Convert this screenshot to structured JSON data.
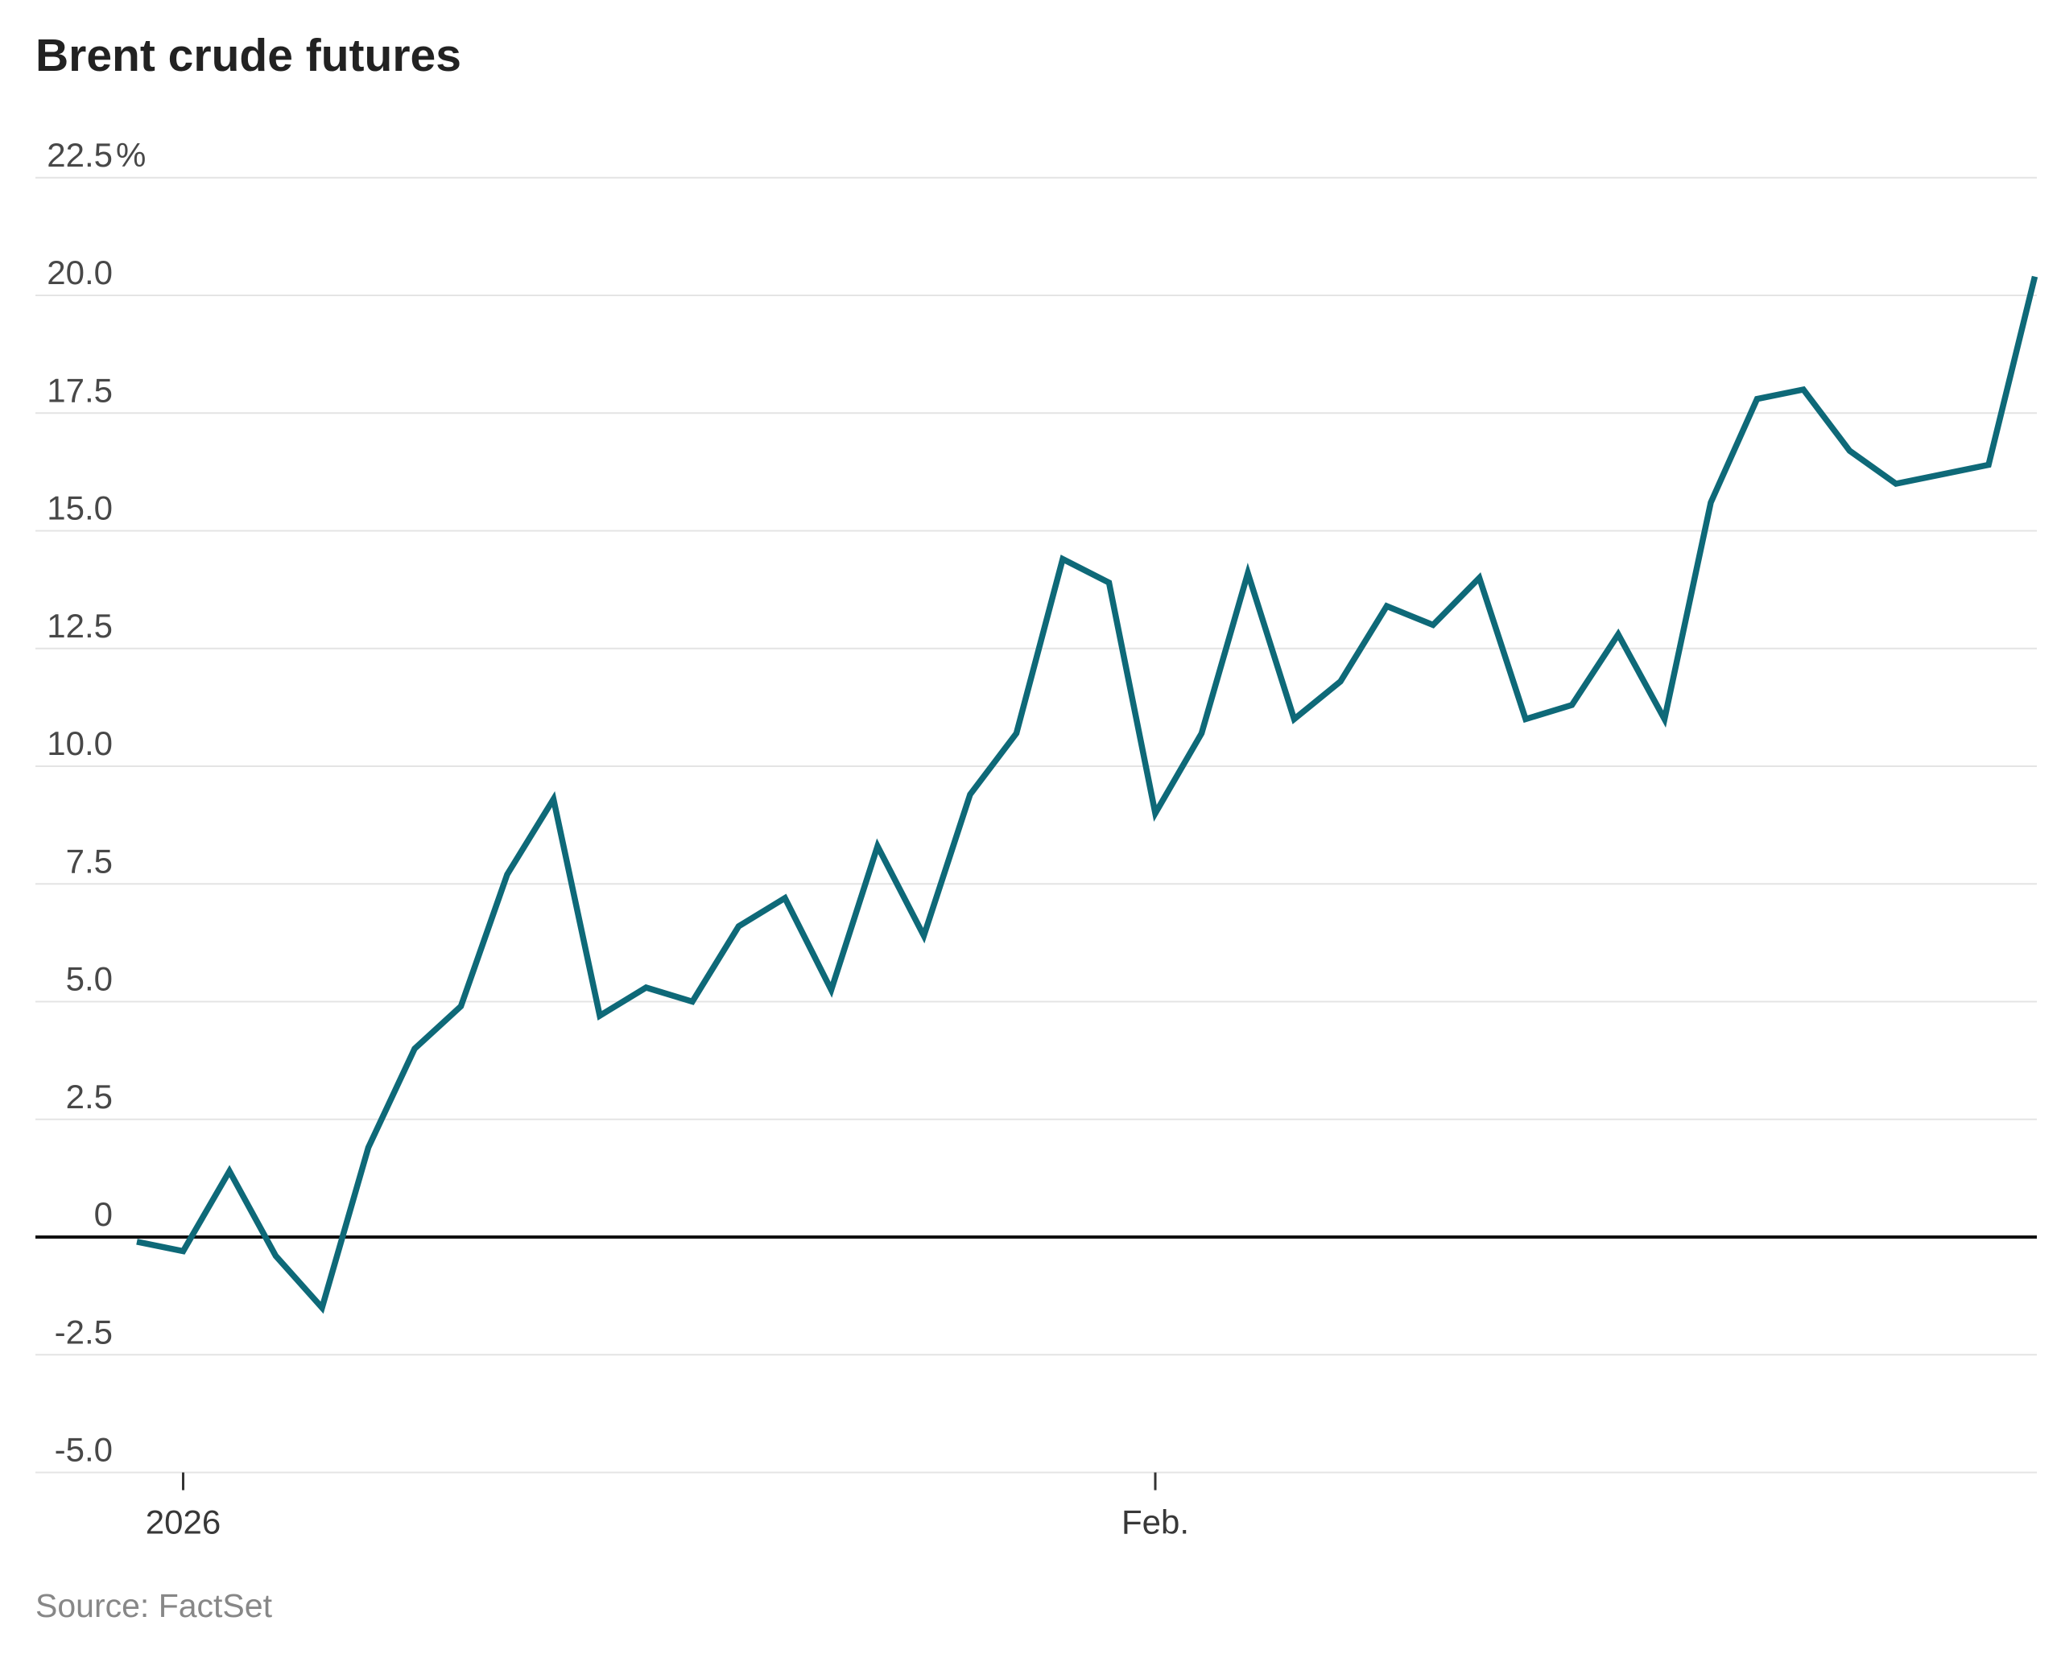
{
  "header": {
    "title": "Brent crude futures"
  },
  "footer": {
    "source": "Source: FactSet"
  },
  "chart_data": {
    "type": "line",
    "title": "Brent crude futures",
    "xlabel": "",
    "ylabel": "",
    "unit": "%",
    "grid": true,
    "legend": "none",
    "ylim": [
      -5.0,
      22.5
    ],
    "y_ticks": [
      {
        "value": 22.5,
        "label": "22.5",
        "suffix": "%"
      },
      {
        "value": 20.0,
        "label": "20.0",
        "suffix": ""
      },
      {
        "value": 17.5,
        "label": "17.5",
        "suffix": ""
      },
      {
        "value": 15.0,
        "label": "15.0",
        "suffix": ""
      },
      {
        "value": 12.5,
        "label": "12.5",
        "suffix": ""
      },
      {
        "value": 10.0,
        "label": "10.0",
        "suffix": ""
      },
      {
        "value": 7.5,
        "label": "7.5",
        "suffix": ""
      },
      {
        "value": 5.0,
        "label": "5.0",
        "suffix": ""
      },
      {
        "value": 2.5,
        "label": "2.5",
        "suffix": ""
      },
      {
        "value": 0,
        "label": "0",
        "suffix": ""
      },
      {
        "value": -2.5,
        "label": "-2.5",
        "suffix": ""
      },
      {
        "value": -5.0,
        "label": "-5.0",
        "suffix": ""
      }
    ],
    "x_ticks": [
      {
        "index": 1,
        "label": "2026"
      },
      {
        "index": 22,
        "label": "Feb."
      }
    ],
    "series": [
      {
        "name": "Brent crude futures % change",
        "values": [
          -0.1,
          -0.3,
          1.4,
          -0.4,
          -1.5,
          1.9,
          4.0,
          4.9,
          7.7,
          9.3,
          4.7,
          5.3,
          5.0,
          6.6,
          7.2,
          5.25,
          8.3,
          6.4,
          9.4,
          10.7,
          14.4,
          13.9,
          9.0,
          10.7,
          14.1,
          11.0,
          11.8,
          13.4,
          13.0,
          14.0,
          11.0,
          11.3,
          12.8,
          11.0,
          15.6,
          17.8,
          18.0,
          16.7,
          16.0,
          16.2,
          16.4,
          20.4
        ]
      }
    ],
    "colors": {
      "line": "#0e6978",
      "gridline": "#e4e4e4",
      "zero_line": "#111111",
      "tick_mark": "#333333",
      "y_label": "#484848",
      "x_label": "#383838",
      "title": "#222222",
      "source": "#878787",
      "background": "#ffffff"
    }
  }
}
